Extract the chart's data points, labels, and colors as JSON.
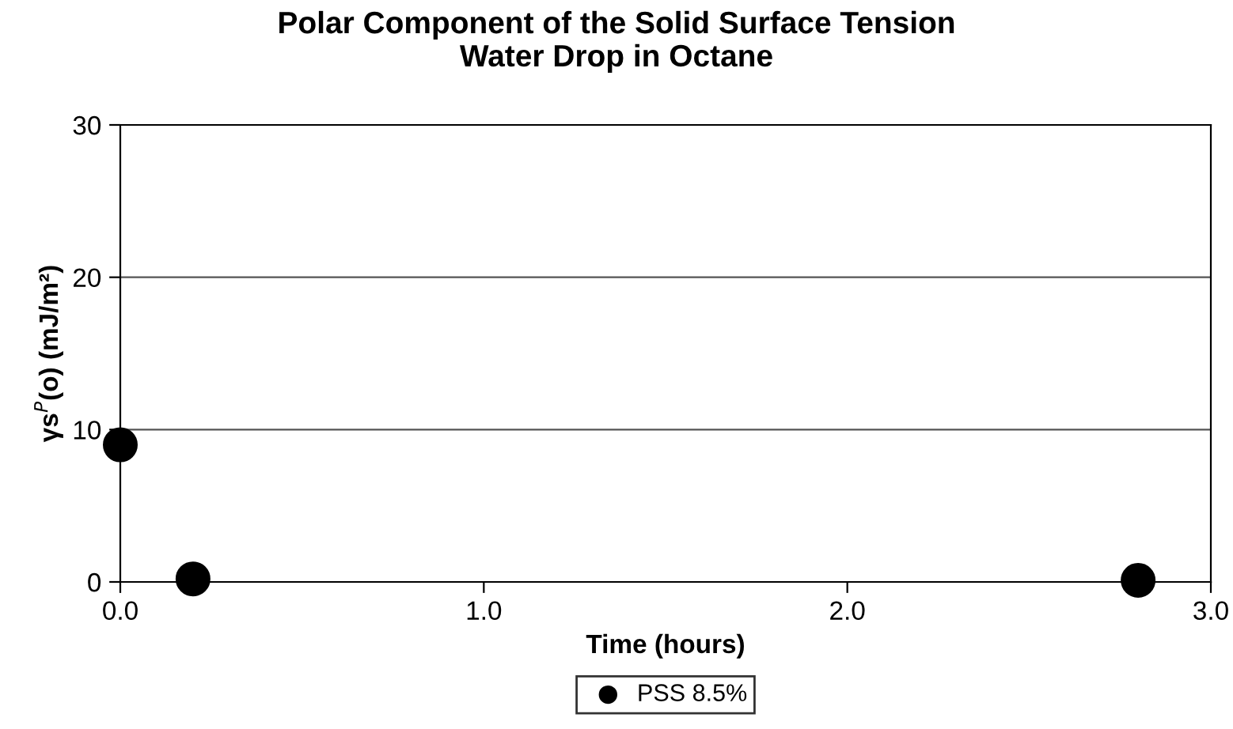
{
  "chart_data": {
    "type": "scatter",
    "title": "Polar Component of the Solid Surface Tension\nWater Drop in Octane",
    "xlabel": "Time (hours)",
    "ylabel": "γs$^{P}$(o) (mJ/m²)",
    "x": [
      0.0,
      0.2,
      2.8
    ],
    "series": [
      {
        "name": "PSS 8.5%",
        "color": "#000000",
        "values": [
          9.0,
          0.2,
          0.1
        ]
      }
    ],
    "xlim": [
      0,
      3
    ],
    "xticks": [
      {
        "value": 0,
        "label": "0.0"
      },
      {
        "value": 1,
        "label": "1.0"
      },
      {
        "value": 2,
        "label": "2.0"
      },
      {
        "value": 3,
        "label": "3.0"
      }
    ],
    "ylim": [
      0,
      30
    ],
    "yticks": [
      0,
      10,
      20,
      30
    ],
    "grid": "y",
    "legend": "bottom",
    "marker": "circle"
  }
}
